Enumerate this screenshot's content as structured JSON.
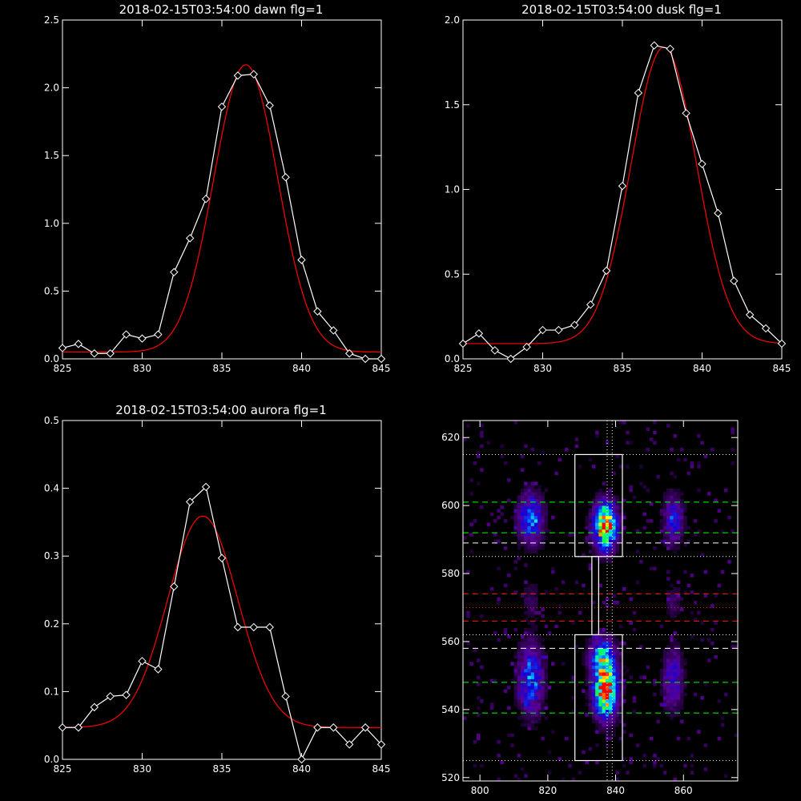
{
  "chart_data": [
    {
      "type": "line",
      "title": "2018-02-15T03:54:00 dawn flg=1",
      "xlim": [
        825,
        845
      ],
      "ylim": [
        0,
        2.5
      ],
      "xticks": [
        "825",
        "830",
        "835",
        "840",
        "845"
      ],
      "yticks": [
        "0.0",
        "0.5",
        "1.0",
        "1.5",
        "2.0",
        "2.5"
      ],
      "series": [
        {
          "kind": "data",
          "color": "#ffffff",
          "marker": "diamond",
          "x": [
            825,
            826,
            827,
            828,
            829,
            830,
            831,
            832,
            833,
            834,
            835,
            836,
            837,
            838,
            839,
            840,
            841,
            842,
            843,
            844,
            845
          ],
          "y": [
            0.08,
            0.11,
            0.04,
            0.04,
            0.18,
            0.15,
            0.18,
            0.64,
            0.89,
            1.18,
            1.86,
            2.09,
            2.1,
            1.87,
            1.34,
            0.73,
            0.35,
            0.21,
            0.04,
            0.0,
            0.0
          ]
        },
        {
          "kind": "fit",
          "color": "#ff0000",
          "gauss": {
            "a": 2.12,
            "mu": 836.5,
            "sigma": 2.0,
            "b": 0.05
          }
        }
      ]
    },
    {
      "type": "line",
      "title": "2018-02-15T03:54:00 dusk flg=1",
      "xlim": [
        825,
        845
      ],
      "ylim": [
        0,
        2.0
      ],
      "xticks": [
        "825",
        "830",
        "835",
        "840",
        "845"
      ],
      "yticks": [
        "0.0",
        "0.5",
        "1.0",
        "1.5",
        "2.0"
      ],
      "series": [
        {
          "kind": "data",
          "color": "#ffffff",
          "marker": "diamond",
          "x": [
            825,
            826,
            827,
            828,
            829,
            830,
            831,
            832,
            833,
            834,
            835,
            836,
            837,
            838,
            839,
            840,
            841,
            842,
            843,
            844,
            845
          ],
          "y": [
            0.09,
            0.15,
            0.05,
            0.0,
            0.07,
            0.17,
            0.17,
            0.2,
            0.32,
            0.52,
            1.02,
            1.57,
            1.85,
            1.83,
            1.45,
            1.15,
            0.86,
            0.46,
            0.26,
            0.18,
            0.09
          ]
        },
        {
          "kind": "fit",
          "color": "#ff0000",
          "gauss": {
            "a": 1.75,
            "mu": 837.6,
            "sigma": 2.05,
            "b": 0.09
          }
        }
      ]
    },
    {
      "type": "line",
      "title": "2018-02-15T03:54:00 aurora flg=1",
      "xlim": [
        825,
        845
      ],
      "ylim": [
        0,
        0.5
      ],
      "xticks": [
        "825",
        "830",
        "835",
        "840",
        "845"
      ],
      "yticks": [
        "0.0",
        "0.1",
        "0.2",
        "0.3",
        "0.4",
        "0.5"
      ],
      "series": [
        {
          "kind": "data",
          "color": "#ffffff",
          "marker": "diamond",
          "x": [
            825,
            826,
            827,
            828,
            829,
            830,
            831,
            832,
            833,
            834,
            835,
            836,
            837,
            838,
            839,
            840,
            841,
            842,
            843,
            844,
            845
          ],
          "y": [
            0.047,
            0.047,
            0.077,
            0.093,
            0.095,
            0.145,
            0.133,
            0.255,
            0.38,
            0.402,
            0.297,
            0.195,
            0.195,
            0.195,
            0.093,
            0.0,
            0.047,
            0.047,
            0.022,
            0.047,
            0.022
          ]
        },
        {
          "kind": "fit",
          "color": "#ff0000",
          "gauss": {
            "a": 0.312,
            "mu": 833.8,
            "sigma": 2.2,
            "b": 0.047
          }
        }
      ]
    },
    {
      "type": "heatmap",
      "title": "",
      "xlim": [
        795,
        876
      ],
      "ylim": [
        519,
        625
      ],
      "xticks": [
        "800",
        "820",
        "840",
        "860"
      ],
      "yticks": [
        "520",
        "540",
        "560",
        "580",
        "600",
        "620"
      ],
      "blobs": [
        {
          "x": 837,
          "y": 594,
          "sx": 2.3,
          "sy": 4.5,
          "amp": 1.0
        },
        {
          "x": 837,
          "y": 546,
          "sx": 2.3,
          "sy": 5.5,
          "amp": 1.0
        },
        {
          "x": 836,
          "y": 556,
          "sx": 2.5,
          "sy": 3.5,
          "amp": 0.5
        },
        {
          "x": 815,
          "y": 596,
          "sx": 2.5,
          "sy": 5.0,
          "amp": 0.45
        },
        {
          "x": 815,
          "y": 549,
          "sx": 2.5,
          "sy": 7.0,
          "amp": 0.45
        },
        {
          "x": 857,
          "y": 596,
          "sx": 2.0,
          "sy": 5.0,
          "amp": 0.32
        },
        {
          "x": 857,
          "y": 549,
          "sx": 2.0,
          "sy": 6.0,
          "amp": 0.32
        },
        {
          "x": 857,
          "y": 572,
          "sx": 1.5,
          "sy": 3.5,
          "amp": 0.12
        },
        {
          "x": 815,
          "y": 572,
          "sx": 2.0,
          "sy": 4.0,
          "amp": 0.1
        }
      ],
      "boxes": [
        {
          "x0": 828,
          "x1": 842,
          "y0": 585,
          "y1": 615
        },
        {
          "x0": 828,
          "x1": 842,
          "y0": 525,
          "y1": 562
        },
        {
          "x0": 833,
          "x1": 835,
          "y0": 562,
          "y1": 585
        }
      ],
      "hlines": [
        {
          "y": 615,
          "color": "#ffffff",
          "style": "dotted"
        },
        {
          "y": 601,
          "color": "#00ff00",
          "style": "dashed"
        },
        {
          "y": 592,
          "color": "#00ff00",
          "style": "dashed"
        },
        {
          "y": 589,
          "color": "#ffffff",
          "style": "dashed"
        },
        {
          "y": 585,
          "color": "#ffffff",
          "style": "dotted"
        },
        {
          "y": 574,
          "color": "#ff0000",
          "style": "dashed"
        },
        {
          "y": 570,
          "color": "#ff0000",
          "style": "dotted"
        },
        {
          "y": 566,
          "color": "#ff0000",
          "style": "dashed"
        },
        {
          "y": 562,
          "color": "#ffffff",
          "style": "dotted"
        },
        {
          "y": 558,
          "color": "#ffffff",
          "style": "dashed"
        },
        {
          "y": 548,
          "color": "#00ff00",
          "style": "dashed"
        },
        {
          "y": 539,
          "color": "#00ff00",
          "style": "dashed"
        },
        {
          "y": 525,
          "color": "#ffffff",
          "style": "dotted"
        }
      ],
      "vlines": [
        {
          "x": 837.5,
          "color": "#ffffff",
          "style": "dotted"
        },
        {
          "x": 839,
          "color": "#ffffff",
          "style": "dotted"
        }
      ]
    }
  ]
}
